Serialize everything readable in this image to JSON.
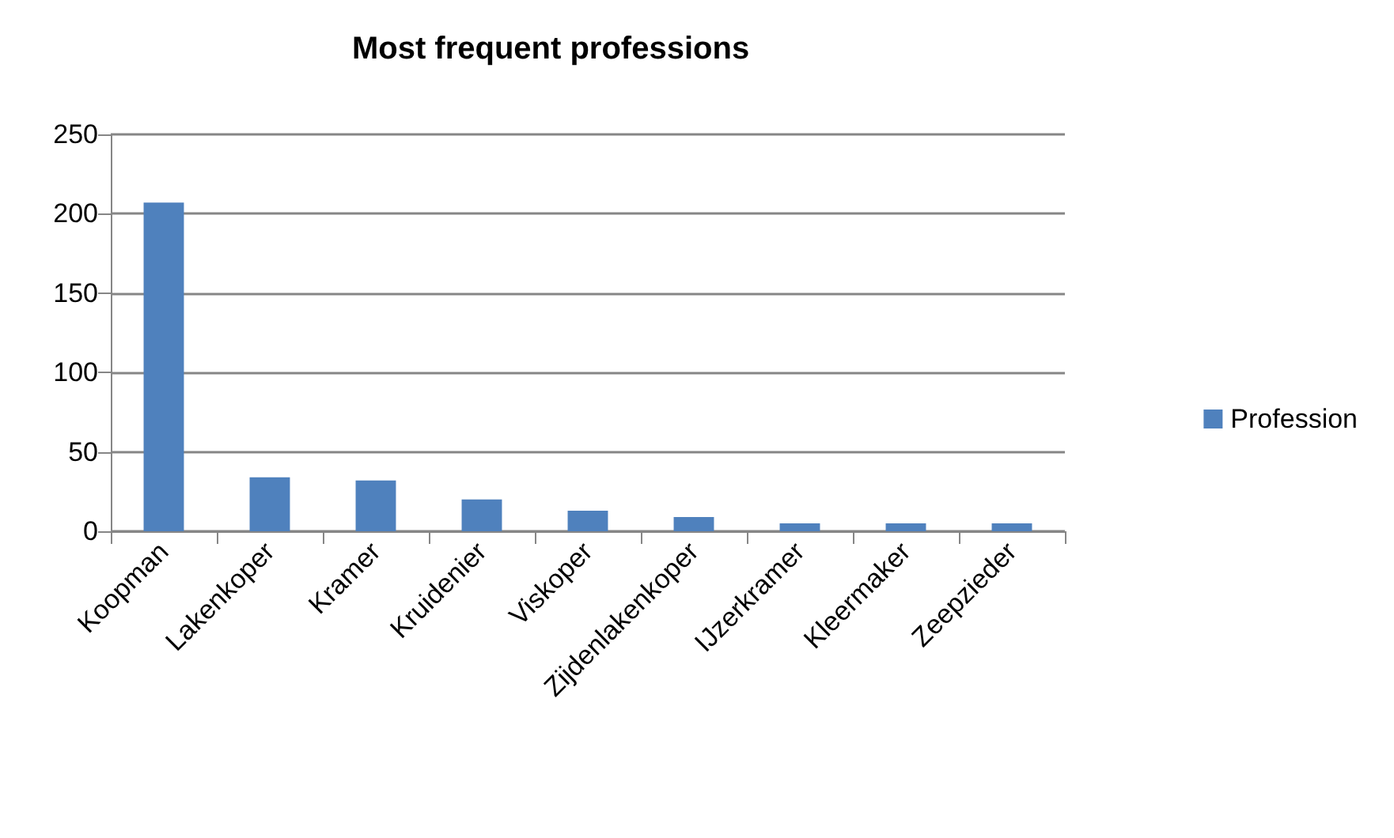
{
  "chart_data": {
    "type": "bar",
    "title": "Most frequent professions",
    "categories": [
      "Koopman",
      "Lakenkoper",
      "Kramer",
      "Kruidenier",
      "Viskoper",
      "Zijdenlakenkoper",
      "IJzerkramer",
      "Kleermaker",
      "Zeepzieder"
    ],
    "series": [
      {
        "name": "Profession",
        "color": "#4f81bd",
        "values": [
          207,
          34,
          32,
          20,
          13,
          9,
          5,
          5,
          5
        ]
      }
    ],
    "ylim": [
      0,
      250
    ],
    "yticks": [
      0,
      50,
      100,
      150,
      200,
      250
    ],
    "grid": "y",
    "legend": "right"
  }
}
